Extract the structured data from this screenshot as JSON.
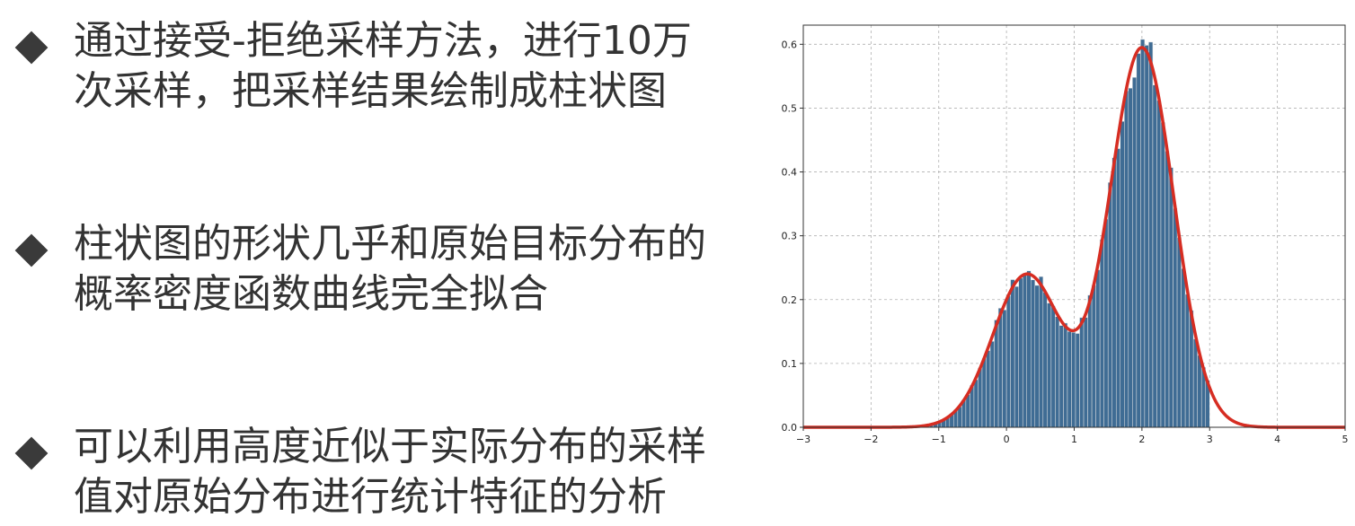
{
  "bullets": [
    {
      "line1": "通过接受-拒绝采样方法，进行10万",
      "line2": "次采样，把采样结果绘制成柱状图"
    },
    {
      "line1": "柱状图的形状几乎和原始目标分布的",
      "line2": "概率密度函数曲线完全拟合"
    },
    {
      "line1": "可以利用高度近似于实际分布的采样",
      "line2": "值对原始分布进行统计特征的分析"
    }
  ],
  "colors": {
    "bar": "#3f6c94",
    "bar_edge": "#e6e6e6",
    "curve": "#d62d22",
    "grid": "#b0b0b0"
  },
  "chart_data": {
    "type": "bar",
    "title": "",
    "xlabel": "",
    "ylabel": "",
    "xlim": [
      -3,
      5
    ],
    "ylim": [
      0,
      0.63
    ],
    "xticks": [
      -3,
      -2,
      -1,
      0,
      1,
      2,
      3,
      4,
      5
    ],
    "yticks": [
      0.0,
      0.1,
      0.2,
      0.3,
      0.4,
      0.5,
      0.6
    ],
    "xtick_labels": [
      "−3",
      "−2",
      "−1",
      "0",
      "1",
      "2",
      "3",
      "4",
      "5"
    ],
    "ytick_labels": [
      "0.0",
      "0.1",
      "0.2",
      "0.3",
      "0.4",
      "0.5",
      "0.6"
    ],
    "grid": true,
    "series": [
      {
        "name": "histogram",
        "kind": "bar",
        "bin_range": [
          -1.5,
          3.0
        ],
        "bin_width": 0.06
      },
      {
        "name": "pdf",
        "kind": "line",
        "components": [
          {
            "weight": 0.3,
            "mean": 0.3,
            "std": 0.5
          },
          {
            "weight": 0.7,
            "mean": 2.0,
            "std": 0.47
          }
        ]
      }
    ]
  }
}
